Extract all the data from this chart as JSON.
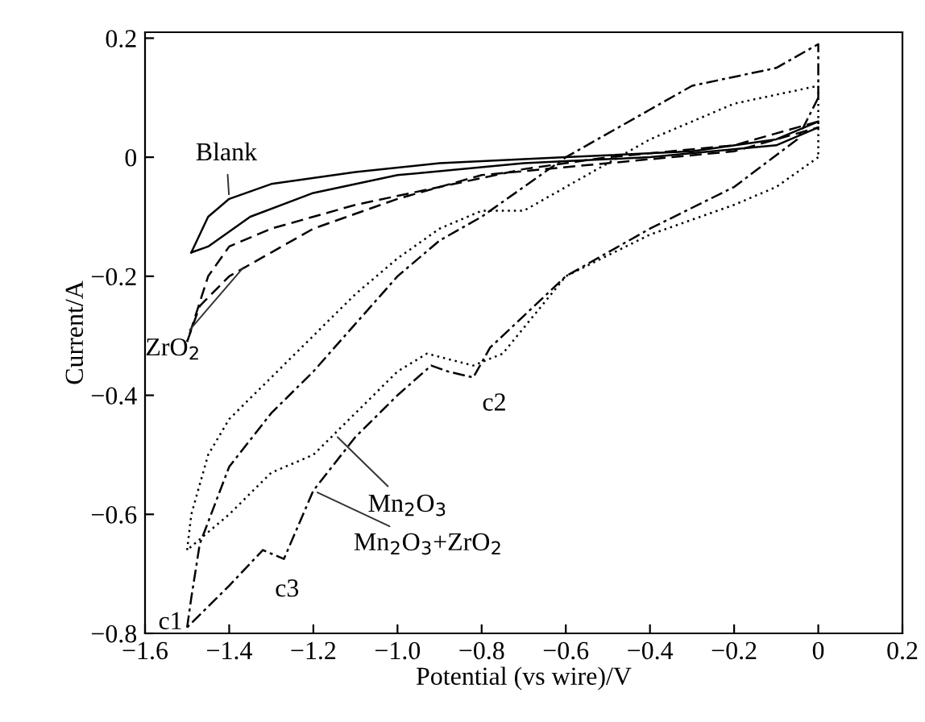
{
  "chart_data": {
    "type": "line",
    "xlabel": "Potential (vs wire)/V",
    "ylabel": "Current/A",
    "xlim": [
      -1.6,
      0.2
    ],
    "ylim": [
      -0.8,
      0.21
    ],
    "xticks": [
      {
        "value": -1.6,
        "label": "−1.6"
      },
      {
        "value": -1.4,
        "label": "−1.4"
      },
      {
        "value": -1.2,
        "label": "−1.2"
      },
      {
        "value": -1.0,
        "label": "−1.0"
      },
      {
        "value": -0.8,
        "label": "−0.8"
      },
      {
        "value": -0.6,
        "label": "−0.6"
      },
      {
        "value": -0.4,
        "label": "−0.4"
      },
      {
        "value": -0.2,
        "label": "−0.2"
      },
      0,
      0.2
    ],
    "yticks": [
      0.2,
      0,
      {
        "value": -0.2,
        "label": "−0.2"
      },
      {
        "value": -0.4,
        "label": "−0.4"
      },
      {
        "value": -0.6,
        "label": "−0.6"
      },
      {
        "value": -0.8,
        "label": "−0.8"
      }
    ],
    "grid": false,
    "legend": false,
    "marker": "none",
    "series": [
      {
        "color": "#000000",
        "line_style": "solid",
        "x": [
          0,
          -0.1,
          -0.3,
          -0.6,
          -0.9,
          -1.1,
          -1.3,
          -1.4,
          -1.45,
          -1.49
        ],
        "values": [
          0.06,
          0.03,
          0.01,
          0.0,
          -0.01,
          -0.025,
          -0.045,
          -0.07,
          -0.1,
          -0.16
        ]
      },
      {
        "color": "#000000",
        "line_style": "solid",
        "x": [
          -1.49,
          -1.45,
          -1.35,
          -1.2,
          -1.0,
          -0.7,
          -0.4,
          -0.1,
          0
        ],
        "values": [
          -0.16,
          -0.15,
          -0.1,
          -0.06,
          -0.03,
          -0.01,
          0.0,
          0.02,
          0.05
        ]
      },
      {
        "color": "#000000",
        "line_style": "dashed",
        "x": [
          0,
          -0.2,
          -0.5,
          -0.7,
          -0.9,
          -1.1,
          -1.3,
          -1.4,
          -1.45,
          -1.5
        ],
        "values": [
          0.06,
          0.02,
          0.0,
          -0.02,
          -0.05,
          -0.08,
          -0.12,
          -0.15,
          -0.2,
          -0.31
        ]
      },
      {
        "color": "#000000",
        "line_style": "dashed",
        "x": [
          -1.5,
          -1.47,
          -1.4,
          -1.3,
          -1.2,
          -1.0,
          -0.8,
          -0.5,
          -0.2,
          0
        ],
        "values": [
          -0.31,
          -0.25,
          -0.2,
          -0.16,
          -0.12,
          -0.07,
          -0.03,
          -0.01,
          0.01,
          0.05
        ]
      },
      {
        "color": "#000000",
        "line_style": "dotted",
        "x": [
          0,
          -0.1,
          -0.2,
          -0.4,
          -0.6,
          -0.75,
          -0.82,
          -0.93,
          -1.0,
          -1.1,
          -1.2,
          -1.3,
          -1.4,
          -1.5
        ],
        "values": [
          0.0,
          -0.05,
          -0.08,
          -0.13,
          -0.2,
          -0.33,
          -0.35,
          -0.33,
          -0.36,
          -0.43,
          -0.5,
          -0.53,
          -0.6,
          -0.66
        ]
      },
      {
        "color": "#000000",
        "line_style": "dotted",
        "x": [
          -1.5,
          -1.49,
          -1.45,
          -1.4,
          -1.3,
          -1.2,
          -1.1,
          -1.0,
          -0.9,
          -0.8,
          -0.7,
          -0.6,
          -0.4,
          -0.2,
          0,
          0
        ],
        "values": [
          -0.66,
          -0.6,
          -0.5,
          -0.44,
          -0.37,
          -0.3,
          -0.23,
          -0.17,
          -0.12,
          -0.09,
          -0.09,
          -0.05,
          0.03,
          0.09,
          0.12,
          0.0
        ]
      },
      {
        "color": "#000000",
        "line_style": "dashdot",
        "x": [
          0,
          -0.05,
          -0.2,
          -0.4,
          -0.6,
          -0.78,
          -0.82,
          -0.88,
          -0.92,
          -1.0,
          -1.1,
          -1.2,
          -1.27,
          -1.32,
          -1.4,
          -1.5
        ],
        "values": [
          0.1,
          0.03,
          -0.05,
          -0.12,
          -0.2,
          -0.32,
          -0.37,
          -0.36,
          -0.35,
          -0.4,
          -0.47,
          -0.56,
          -0.675,
          -0.66,
          -0.72,
          -0.79
        ]
      },
      {
        "color": "#000000",
        "line_style": "dashdot",
        "x": [
          -1.5,
          -1.49,
          -1.47,
          -1.4,
          -1.3,
          -1.2,
          -1.1,
          -1.0,
          -0.9,
          -0.8,
          -0.6,
          -0.4,
          -0.3,
          -0.1,
          0,
          0
        ],
        "values": [
          -0.79,
          -0.74,
          -0.65,
          -0.52,
          -0.43,
          -0.36,
          -0.28,
          -0.2,
          -0.14,
          -0.1,
          0.0,
          0.08,
          0.12,
          0.15,
          0.19,
          0.1
        ]
      }
    ],
    "annotations": [
      {
        "text": "Blank",
        "x": -1.4,
        "y": -0.07
      },
      {
        "text": "ZrO$_{2}$",
        "x": -1.36,
        "y": -0.18
      },
      {
        "text": "Mn$_{2}$O$_{3}$",
        "x": -1.15,
        "y": -0.465
      },
      {
        "text": "Mn$_{2}$O$_{3}$+ZrO$_{2}$",
        "x": -1.2,
        "y": -0.56
      },
      {
        "text": "c1",
        "x": -1.5,
        "y": -0.79
      },
      {
        "text": "c2",
        "x": -0.82,
        "y": -0.37
      },
      {
        "text": "c3",
        "x": -1.27,
        "y": -0.675
      }
    ]
  }
}
